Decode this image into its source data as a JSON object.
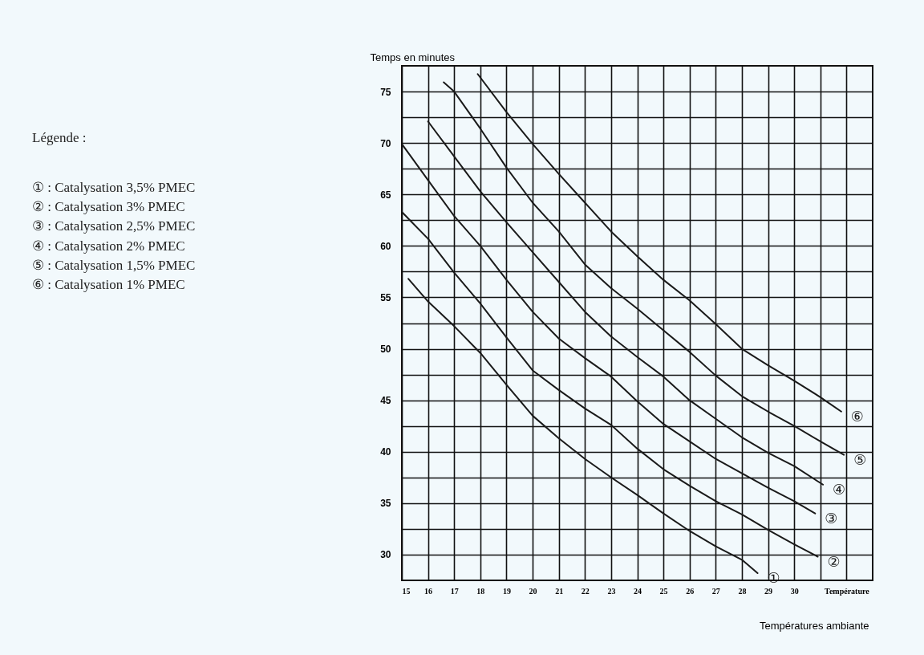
{
  "chart_data": {
    "type": "line",
    "xlabel": "Températures ambiante",
    "ylabel": "Temps en minutes",
    "xlim": [
      15,
      33
    ],
    "ylim": [
      27.5,
      77.5
    ],
    "xticks": [
      15,
      16,
      17,
      18,
      19,
      20,
      21,
      22,
      23,
      24,
      25,
      26,
      27,
      28,
      29,
      30,
      {
        "value": 31,
        "label": null
      },
      {
        "value": 32,
        "label": "Température"
      }
    ],
    "yticks": [
      30,
      {
        "value": 32.5,
        "label": null
      },
      35,
      {
        "value": 37.5,
        "label": null
      },
      40,
      {
        "value": 42.5,
        "label": null
      },
      45,
      {
        "value": 47.5,
        "label": null
      },
      50,
      {
        "value": 52.5,
        "label": null
      },
      55,
      {
        "value": 57.5,
        "label": null
      },
      60,
      {
        "value": 62.5,
        "label": null
      },
      65,
      {
        "value": 67.5,
        "label": null
      },
      70,
      {
        "value": 72.5,
        "label": null
      },
      75
    ],
    "grid": true,
    "marker": "none",
    "line_style": "solid",
    "series": [
      {
        "name": "①",
        "color": "#1a1a1a",
        "x": [
          15.25,
          16,
          17,
          18,
          19,
          20,
          21,
          22,
          23,
          24,
          25,
          26,
          27,
          28,
          28.6
        ],
        "values": [
          56.8,
          54.6,
          52.2,
          49.6,
          46.5,
          43.5,
          41.3,
          39.3,
          37.5,
          35.8,
          34,
          32.3,
          30.8,
          29.5,
          28.2
        ]
      },
      {
        "name": "②",
        "color": "#1a1a1a",
        "x": [
          15,
          16,
          17,
          18,
          19,
          20,
          21,
          22,
          23,
          24,
          25,
          26,
          27,
          28,
          29,
          30,
          30.9
        ],
        "values": [
          63.3,
          60.7,
          57.4,
          54.4,
          51.1,
          47.9,
          46,
          44.2,
          42.6,
          40.3,
          38.3,
          36.7,
          35.2,
          33.9,
          32.4,
          31,
          29.8
        ]
      },
      {
        "name": "③",
        "color": "#1a1a1a",
        "x": [
          15,
          16,
          17,
          18,
          19,
          20,
          21,
          22,
          23,
          24,
          25,
          26,
          27,
          28,
          29,
          30,
          30.8
        ],
        "values": [
          69.9,
          66.4,
          62.9,
          60,
          56.7,
          53.6,
          51,
          49.1,
          47.3,
          44.9,
          42.7,
          41,
          39.3,
          37.9,
          36.5,
          35.2,
          34
        ]
      },
      {
        "name": "④",
        "color": "#1a1a1a",
        "x": [
          16,
          17,
          18,
          19,
          20,
          21,
          22,
          23,
          24,
          25,
          26,
          27,
          28,
          29,
          30,
          31.1
        ],
        "values": [
          72.1,
          68.7,
          65.3,
          62.3,
          59.4,
          56.5,
          53.6,
          51.2,
          49.2,
          47.3,
          45,
          43.2,
          41.4,
          39.9,
          38.6,
          36.8
        ]
      },
      {
        "name": "⑤",
        "color": "#1a1a1a",
        "x": [
          16.6,
          17,
          18,
          19,
          20,
          21,
          22,
          23,
          24,
          25,
          26,
          27,
          28,
          29,
          30,
          31,
          31.9
        ],
        "values": [
          75.9,
          75,
          71.4,
          67.6,
          64.2,
          61.4,
          58.2,
          55.9,
          53.9,
          51.8,
          49.7,
          47.4,
          45.4,
          43.9,
          42.5,
          41,
          39.7
        ]
      },
      {
        "name": "⑥",
        "color": "#1a1a1a",
        "x": [
          17.9,
          19,
          20,
          21,
          22,
          23,
          24,
          25,
          26,
          27,
          28,
          29,
          30,
          31,
          31.8
        ],
        "values": [
          76.7,
          73,
          69.9,
          67,
          64.2,
          61.4,
          59,
          56.7,
          54.7,
          52.4,
          50,
          48.4,
          46.9,
          45.3,
          43.9
        ]
      }
    ],
    "annotations": [
      "Légende :",
      "① : Catalysation 3,5% PMEC",
      "② : Catalysation 3% PMEC",
      "③ : Catalysation 2,5% PMEC",
      "④ : Catalysation 2% PMEC",
      "⑤ : Catalysation 1,5% PMEC",
      "⑥ : Catalysation 1% PMEC"
    ]
  }
}
